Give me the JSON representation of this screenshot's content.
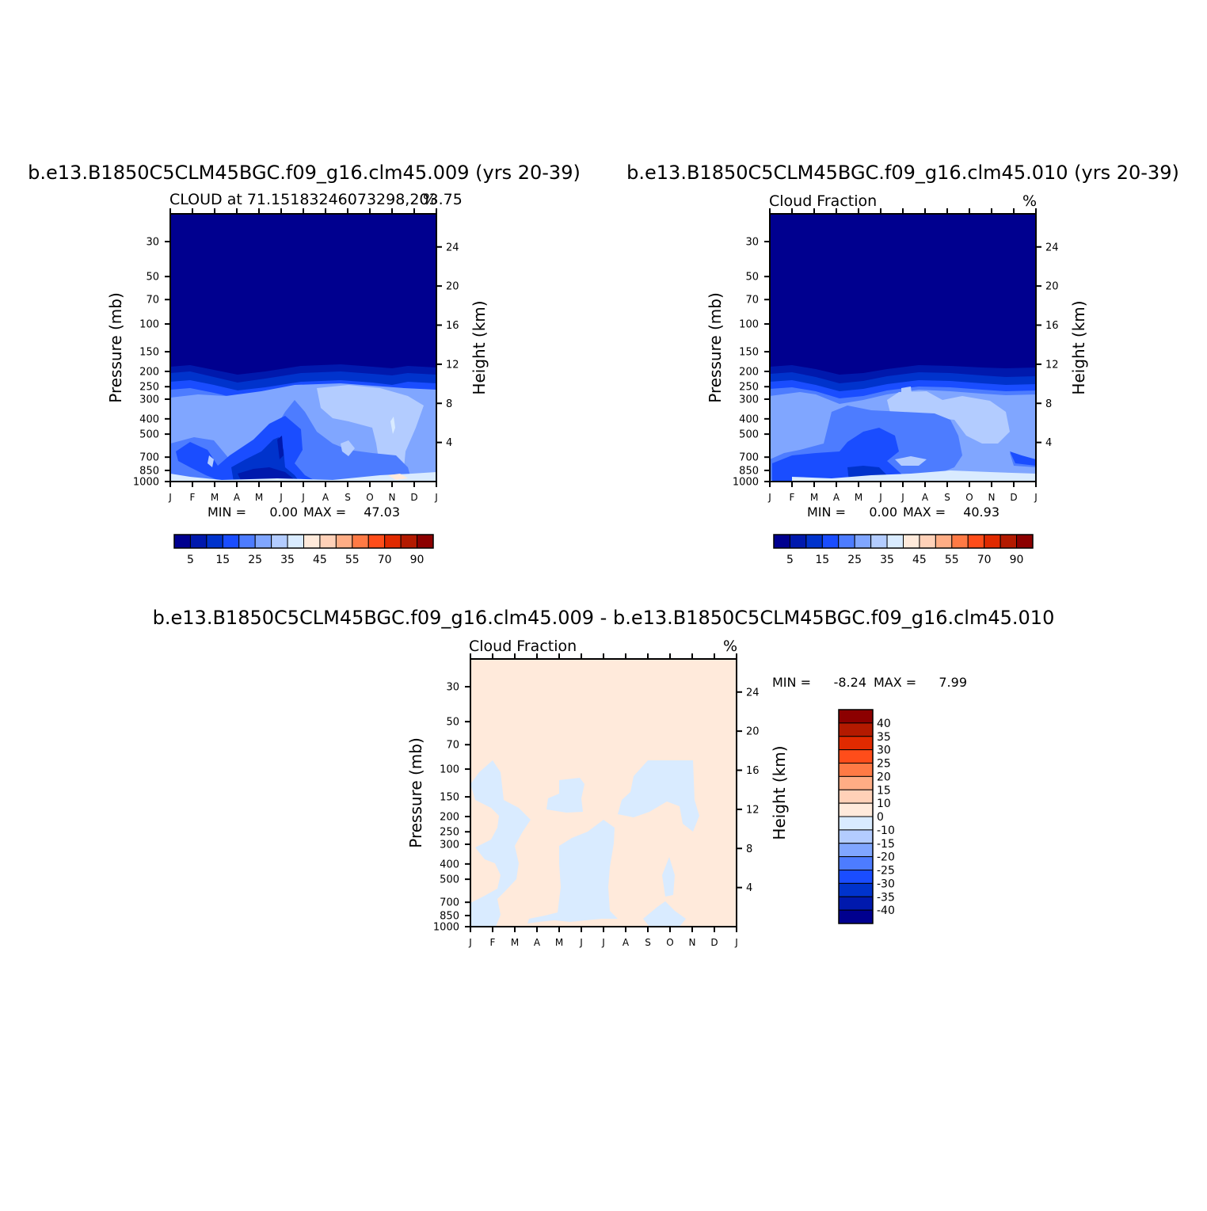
{
  "chart_data": [
    {
      "type": "heatmap",
      "title": "b.e13.B1850C5CLM45BGC.f09_g16.clm45.009 (yrs 20-39)",
      "subtitle_left": "CLOUD at 71.15183246073298,203.75",
      "units": "%",
      "ylabel_left": "Pressure (mb)",
      "ylabel_right": "Height (km)",
      "pressure_ticks": [
        "30",
        "50",
        "70",
        "100",
        "150",
        "200",
        "250",
        "300",
        "400",
        "500",
        "700",
        "850",
        "1000"
      ],
      "height_ticks": [
        "24",
        "20",
        "16",
        "12",
        "8",
        "4"
      ],
      "months": [
        "J",
        "F",
        "M",
        "A",
        "M",
        "J",
        "J",
        "A",
        "S",
        "O",
        "N",
        "D",
        "J"
      ],
      "min_label": "MIN =",
      "min_value": "0.00",
      "max_label": "MAX =",
      "max_value": "47.03",
      "colorbar_labels": [
        "5",
        "15",
        "25",
        "35",
        "45",
        "55",
        "70",
        "90"
      ]
    },
    {
      "type": "heatmap",
      "title": "b.e13.B1850C5CLM45BGC.f09_g16.clm45.010 (yrs 20-39)",
      "subtitle_left": "Cloud Fraction",
      "units": "%",
      "ylabel_left": "Pressure (mb)",
      "ylabel_right": "Height (km)",
      "pressure_ticks": [
        "30",
        "50",
        "70",
        "100",
        "150",
        "200",
        "250",
        "300",
        "400",
        "500",
        "700",
        "850",
        "1000"
      ],
      "height_ticks": [
        "24",
        "20",
        "16",
        "12",
        "8",
        "4"
      ],
      "months": [
        "J",
        "F",
        "M",
        "A",
        "M",
        "J",
        "J",
        "A",
        "S",
        "O",
        "N",
        "D",
        "J"
      ],
      "min_label": "MIN =",
      "min_value": "0.00",
      "max_label": "MAX =",
      "max_value": "40.93",
      "colorbar_labels": [
        "5",
        "15",
        "25",
        "35",
        "45",
        "55",
        "70",
        "90"
      ]
    },
    {
      "type": "heatmap",
      "title": "b.e13.B1850C5CLM45BGC.f09_g16.clm45.009 - b.e13.B1850C5CLM45BGC.f09_g16.clm45.010",
      "subtitle_left": "Cloud Fraction",
      "units": "%",
      "ylabel_left": "Pressure (mb)",
      "ylabel_right": "Height (km)",
      "pressure_ticks": [
        "30",
        "50",
        "70",
        "100",
        "150",
        "200",
        "250",
        "300",
        "400",
        "500",
        "700",
        "850",
        "1000"
      ],
      "height_ticks": [
        "24",
        "20",
        "16",
        "12",
        "8",
        "4"
      ],
      "months": [
        "J",
        "F",
        "M",
        "A",
        "M",
        "J",
        "J",
        "A",
        "S",
        "O",
        "N",
        "D",
        "J"
      ],
      "min_label": "MIN =",
      "min_value": "-8.24",
      "max_label": "MAX =",
      "max_value": "7.99",
      "colorbar_labels": [
        "40",
        "35",
        "30",
        "25",
        "20",
        "15",
        "10",
        "0",
        "-10",
        "-15",
        "-20",
        "-25",
        "-30",
        "-35",
        "-40"
      ]
    }
  ],
  "colors": {
    "c1": "#00008f",
    "c2": "#0019ad",
    "c3": "#0033cc",
    "c4": "#1a4dff",
    "c5": "#4d7cff",
    "c6": "#80a6ff",
    "c7": "#b3ccff",
    "c8": "#d9ebff",
    "w1": "#ffeadb",
    "w2": "#ffd1b8",
    "w3": "#ffad85",
    "w4": "#ff7a45",
    "w5": "#ff4d1a",
    "w6": "#e02a00",
    "w7": "#b31a00",
    "w8": "#8c0000"
  }
}
